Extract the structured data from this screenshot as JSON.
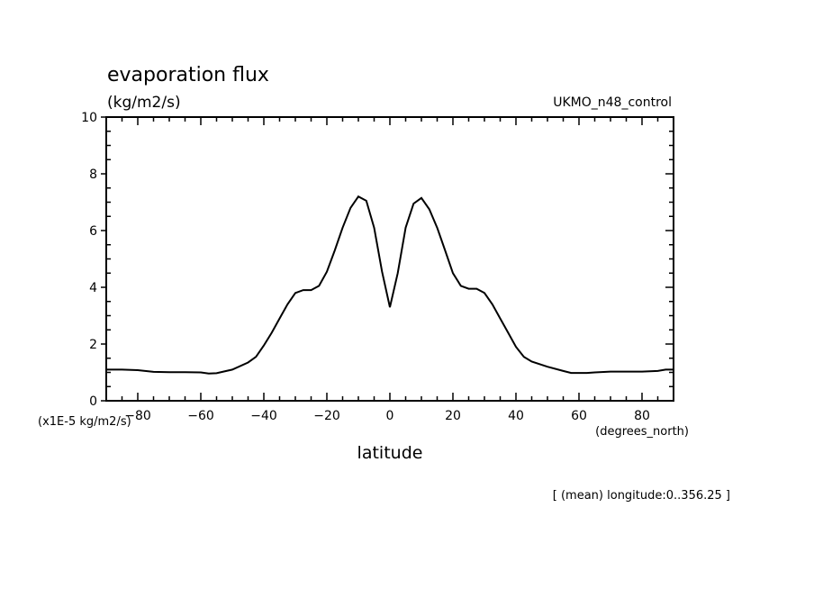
{
  "chart_data": {
    "type": "line",
    "title": "evaporation flux",
    "units_label": "(kg/m2/s)",
    "dataset_label": "UKMO_n48_control",
    "ylabel_scale": "(x1E-5 kg/m2/s)",
    "xlabel": "latitude",
    "x_units": "(degrees_north)",
    "footnote": "[ (mean) longitude:0..356.25 ]",
    "xlim": [
      -90,
      90
    ],
    "ylim": [
      0,
      10
    ],
    "x_ticks": [
      -80,
      -60,
      -40,
      -20,
      0,
      20,
      40,
      60,
      80
    ],
    "y_ticks": [
      0,
      2,
      4,
      6,
      8,
      10
    ],
    "grid": false,
    "x": [
      -90,
      -85,
      -80,
      -75,
      -70,
      -65,
      -60,
      -57.5,
      -55,
      -50,
      -45,
      -42.5,
      -40,
      -37.5,
      -35,
      -32.5,
      -30,
      -27.5,
      -25,
      -22.5,
      -20,
      -17.5,
      -15,
      -12.5,
      -10,
      -7.5,
      -5,
      -2.5,
      0,
      2.5,
      5,
      7.5,
      10,
      12.5,
      15,
      17.5,
      20,
      22.5,
      25,
      27.5,
      30,
      32.5,
      35,
      37.5,
      40,
      42.5,
      45,
      50,
      55,
      57.5,
      62.5,
      65,
      70,
      80,
      85,
      87.5,
      90
    ],
    "y": [
      1.1,
      1.1,
      1.08,
      1.02,
      1.01,
      1.01,
      1.0,
      0.96,
      0.97,
      1.1,
      1.35,
      1.55,
      1.95,
      2.4,
      2.9,
      3.4,
      3.8,
      3.9,
      3.9,
      4.05,
      4.55,
      5.3,
      6.1,
      6.8,
      7.2,
      7.05,
      6.1,
      4.55,
      3.3,
      4.5,
      6.1,
      6.95,
      7.15,
      6.75,
      6.1,
      5.3,
      4.5,
      4.05,
      3.95,
      3.95,
      3.8,
      3.4,
      2.9,
      2.4,
      1.9,
      1.55,
      1.38,
      1.2,
      1.05,
      0.98,
      0.98,
      1.0,
      1.03,
      1.03,
      1.05,
      1.1,
      1.1
    ]
  }
}
